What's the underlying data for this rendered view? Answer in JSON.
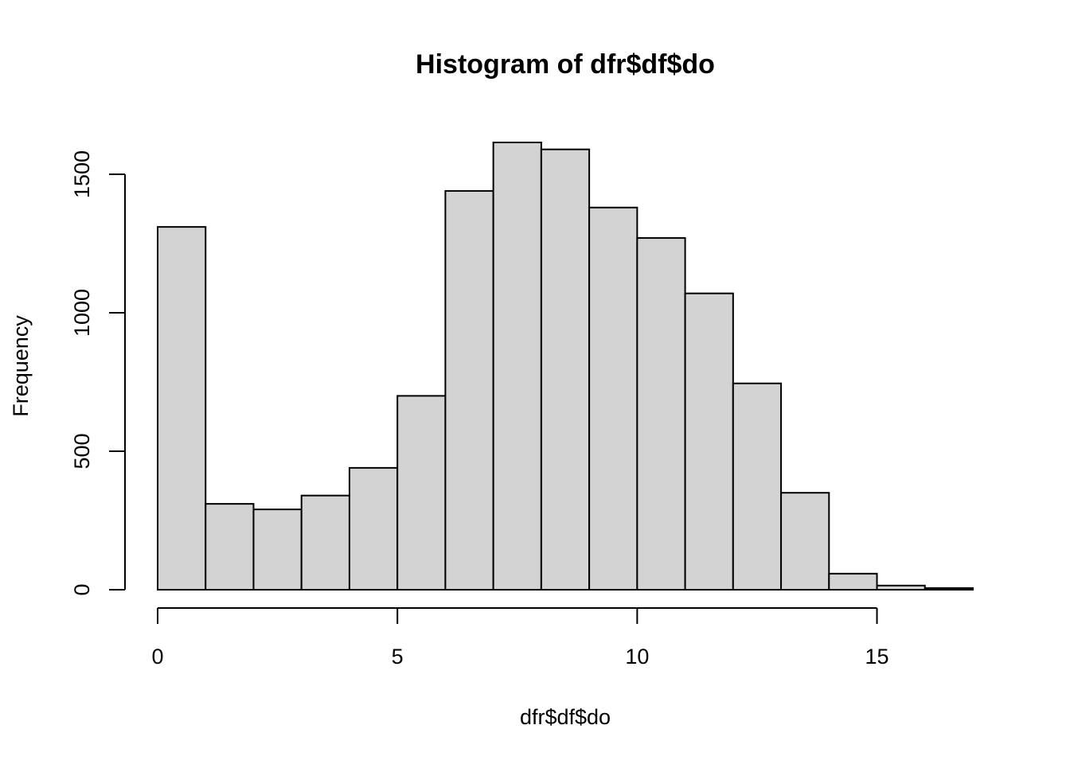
{
  "chart_data": {
    "type": "bar",
    "title": "Histogram of dfr$df$do",
    "xlabel": "dfr$df$do",
    "ylabel": "Frequency",
    "bin_edges": [
      0,
      1,
      2,
      3,
      4,
      5,
      6,
      7,
      8,
      9,
      10,
      11,
      12,
      13,
      14,
      15,
      16,
      17
    ],
    "values": [
      1310,
      310,
      290,
      340,
      440,
      700,
      1440,
      1615,
      1590,
      1380,
      1270,
      1070,
      745,
      350,
      58,
      15,
      6
    ],
    "xlim": [
      0,
      17
    ],
    "ylim": [
      0,
      1615
    ],
    "x_ticks": [
      0,
      5,
      10,
      15
    ],
    "x_tick_labels": [
      "0",
      "5",
      "10",
      "15"
    ],
    "y_ticks": [
      0,
      500,
      1000,
      1500
    ],
    "y_tick_labels": [
      "0",
      "500",
      "1000",
      "1500"
    ],
    "grid": false,
    "legend": "none",
    "colors": {
      "bar_fill": "#d3d3d3",
      "bar_stroke": "#000000",
      "axis": "#000000",
      "background": "#ffffff"
    }
  }
}
